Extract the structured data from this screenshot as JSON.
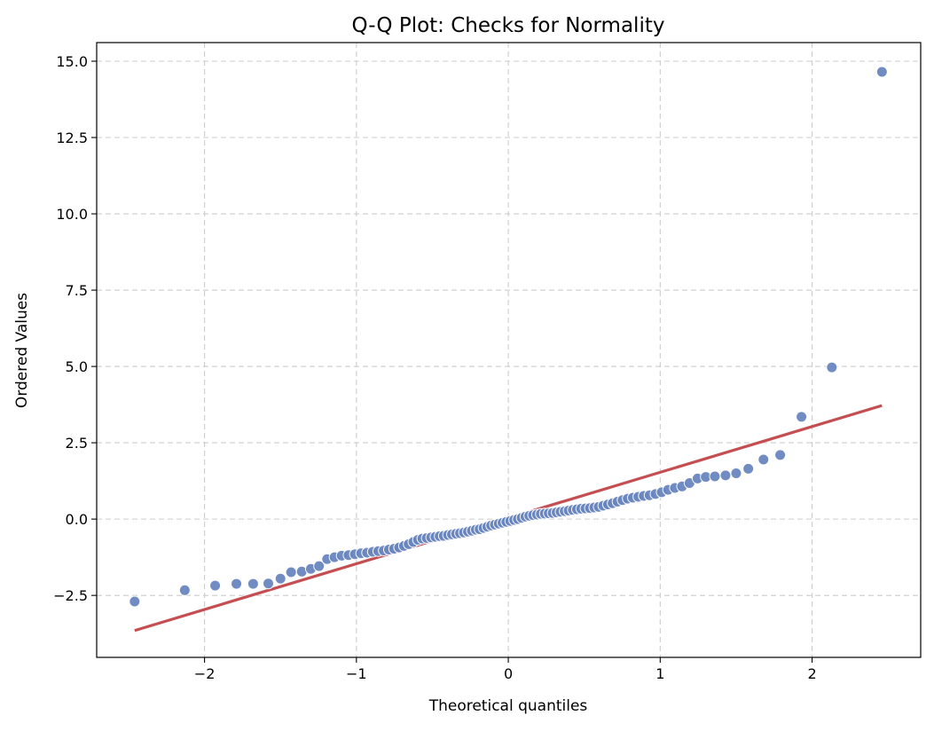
{
  "chart_data": {
    "type": "scatter",
    "title": "Q-Q Plot: Checks for Normality",
    "xlabel": "Theoretical quantiles",
    "ylabel": "Ordered Values",
    "xlim": [
      -2.71,
      2.715
    ],
    "ylim": [
      -4.53,
      15.61
    ],
    "xticks": [
      -2,
      -1,
      0,
      1,
      2
    ],
    "xtick_labels": [
      "−2",
      "−1",
      "0",
      "1",
      "2"
    ],
    "yticks": [
      -2.5,
      0.0,
      2.5,
      5.0,
      7.5,
      10.0,
      12.5,
      15.0
    ],
    "ytick_labels": [
      "−2.5",
      "0.0",
      "2.5",
      "5.0",
      "7.5",
      "10.0",
      "12.5",
      "15.0"
    ],
    "grid": true,
    "grid_style": "dashed",
    "colors": {
      "points": "#6a86bf",
      "fit_line": "#c44e52",
      "grid": "#cccccc"
    },
    "fit_line": {
      "slope": 1.498,
      "intercept": 0.035,
      "x_range": [
        -2.46,
        2.46
      ]
    },
    "x": [
      -2.46,
      -2.13,
      -1.93,
      -1.79,
      -1.68,
      -1.58,
      -1.5,
      -1.43,
      -1.36,
      -1.3,
      -1.246,
      -1.193,
      -1.144,
      -1.097,
      -1.052,
      -1.01,
      -0.969,
      -0.93,
      -0.892,
      -0.856,
      -0.82,
      -0.786,
      -0.752,
      -0.719,
      -0.687,
      -0.656,
      -0.625,
      -0.595,
      -0.566,
      -0.537,
      -0.508,
      -0.48,
      -0.452,
      -0.425,
      -0.397,
      -0.371,
      -0.344,
      -0.318,
      -0.292,
      -0.266,
      -0.24,
      -0.214,
      -0.189,
      -0.163,
      -0.138,
      -0.113,
      -0.088,
      -0.063,
      -0.038,
      -0.013,
      0.013,
      0.038,
      0.063,
      0.088,
      0.113,
      0.138,
      0.163,
      0.189,
      0.214,
      0.24,
      0.266,
      0.292,
      0.318,
      0.344,
      0.371,
      0.397,
      0.425,
      0.452,
      0.48,
      0.508,
      0.537,
      0.566,
      0.595,
      0.625,
      0.656,
      0.687,
      0.719,
      0.752,
      0.786,
      0.82,
      0.856,
      0.892,
      0.93,
      0.969,
      1.01,
      1.052,
      1.097,
      1.144,
      1.193,
      1.246,
      1.3,
      1.36,
      1.43,
      1.5,
      1.58,
      1.68,
      1.79,
      1.93,
      2.13,
      2.46
    ],
    "y": [
      -2.7,
      -2.33,
      -2.18,
      -2.12,
      -2.12,
      -2.11,
      -1.95,
      -1.74,
      -1.72,
      -1.63,
      -1.54,
      -1.31,
      -1.25,
      -1.2,
      -1.18,
      -1.15,
      -1.12,
      -1.1,
      -1.07,
      -1.05,
      -1.03,
      -1.0,
      -0.97,
      -0.93,
      -0.88,
      -0.82,
      -0.75,
      -0.68,
      -0.64,
      -0.62,
      -0.6,
      -0.58,
      -0.56,
      -0.55,
      -0.52,
      -0.5,
      -0.48,
      -0.46,
      -0.44,
      -0.41,
      -0.38,
      -0.35,
      -0.33,
      -0.29,
      -0.25,
      -0.21,
      -0.18,
      -0.15,
      -0.12,
      -0.09,
      -0.06,
      -0.03,
      0.0,
      0.04,
      0.08,
      0.11,
      0.13,
      0.15,
      0.17,
      0.18,
      0.19,
      0.2,
      0.22,
      0.24,
      0.26,
      0.28,
      0.3,
      0.32,
      0.34,
      0.35,
      0.36,
      0.38,
      0.4,
      0.44,
      0.48,
      0.52,
      0.57,
      0.62,
      0.67,
      0.7,
      0.73,
      0.76,
      0.78,
      0.82,
      0.88,
      0.96,
      1.02,
      1.07,
      1.18,
      1.33,
      1.38,
      1.4,
      1.43,
      1.5,
      1.65,
      1.95,
      2.1,
      3.35,
      4.97,
      14.65
    ]
  }
}
